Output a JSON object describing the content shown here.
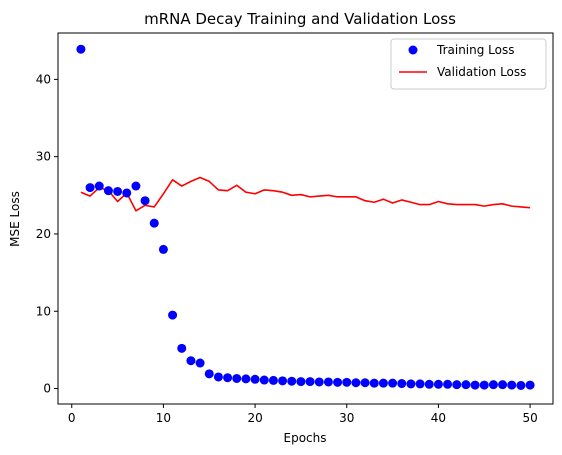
{
  "chart_data": {
    "type": "scatter",
    "title": "mRNA Decay Training and Validation Loss",
    "xlabel": "Epochs",
    "ylabel": "MSE Loss",
    "xlim": [
      -1.5,
      52.5
    ],
    "ylim": [
      -2,
      46
    ],
    "xticks": [
      0,
      10,
      20,
      30,
      40,
      50
    ],
    "yticks": [
      0,
      10,
      20,
      30,
      40
    ],
    "grid": false,
    "legend_position": "top-right",
    "x": [
      1,
      2,
      3,
      4,
      5,
      6,
      7,
      8,
      9,
      10,
      11,
      12,
      13,
      14,
      15,
      16,
      17,
      18,
      19,
      20,
      21,
      22,
      23,
      24,
      25,
      26,
      27,
      28,
      29,
      30,
      31,
      32,
      33,
      34,
      35,
      36,
      37,
      38,
      39,
      40,
      41,
      42,
      43,
      44,
      45,
      46,
      47,
      48,
      49,
      50
    ],
    "series": [
      {
        "name": "Training Loss",
        "kind": "scatter",
        "color": "#0000ff",
        "values": [
          43.9,
          26.0,
          26.2,
          25.6,
          25.5,
          25.3,
          26.2,
          24.3,
          21.4,
          18.0,
          9.5,
          5.2,
          3.6,
          3.3,
          1.9,
          1.5,
          1.4,
          1.3,
          1.25,
          1.2,
          1.1,
          1.05,
          1.0,
          0.95,
          0.9,
          0.9,
          0.85,
          0.85,
          0.8,
          0.8,
          0.75,
          0.75,
          0.7,
          0.7,
          0.7,
          0.65,
          0.6,
          0.6,
          0.55,
          0.55,
          0.55,
          0.5,
          0.5,
          0.45,
          0.45,
          0.5,
          0.5,
          0.45,
          0.4,
          0.45
        ]
      },
      {
        "name": "Validation Loss",
        "kind": "line",
        "color": "#ff0000",
        "values": [
          25.4,
          24.9,
          26.0,
          25.6,
          24.2,
          25.3,
          23.0,
          23.7,
          23.5,
          25.2,
          27.0,
          26.2,
          26.8,
          27.3,
          26.8,
          25.7,
          25.6,
          26.3,
          25.4,
          25.2,
          25.7,
          25.6,
          25.4,
          25.0,
          25.1,
          24.8,
          24.9,
          25.0,
          24.8,
          24.8,
          24.8,
          24.3,
          24.1,
          24.5,
          24.0,
          24.4,
          24.1,
          23.8,
          23.8,
          24.2,
          23.9,
          23.8,
          23.8,
          23.8,
          23.6,
          23.8,
          23.9,
          23.6,
          23.5,
          23.4
        ]
      }
    ]
  }
}
